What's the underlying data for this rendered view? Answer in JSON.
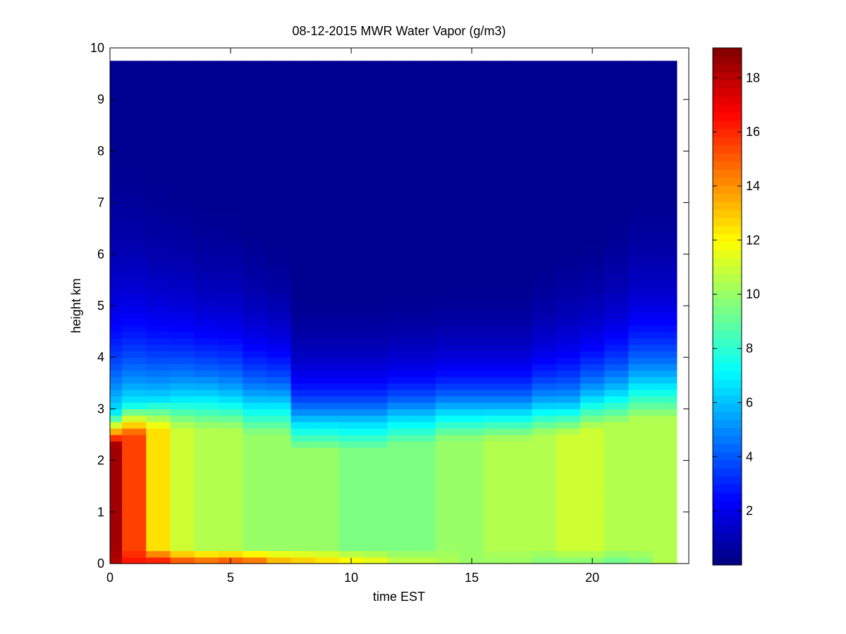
{
  "chart_data": {
    "type": "heatmap",
    "title": "08-12-2015 MWR Water Vapor (g/m3)",
    "xlabel": "time EST",
    "ylabel": "height km",
    "xlim": [
      0,
      24
    ],
    "ylim": [
      0,
      10
    ],
    "xticks": [
      0,
      5,
      10,
      15,
      20
    ],
    "yticks": [
      0,
      1,
      2,
      3,
      4,
      5,
      6,
      7,
      8,
      9,
      10
    ],
    "colorbar": {
      "min": 0,
      "max": 19.1,
      "ticks": [
        2,
        4,
        6,
        8,
        10,
        12,
        14,
        16,
        18
      ],
      "colormap": "jet"
    },
    "time_hours": [
      0,
      1,
      2,
      3,
      4,
      5,
      6,
      7,
      8,
      9,
      10,
      11,
      12,
      13,
      14,
      15,
      16,
      17,
      18,
      19,
      20,
      21,
      22,
      23
    ],
    "max_height_km": 9.75,
    "profile_columns": [
      "time_hours",
      "surface_vapor",
      "low_level_vapor",
      "moist_layer_top_km",
      "mid_level_vapor",
      "moisture_scale_height_km"
    ],
    "profiles": [
      [
        0,
        18.0,
        18.5,
        2.3,
        7.0,
        1.6
      ],
      [
        1,
        16.5,
        15.5,
        2.5,
        7.0,
        1.5
      ],
      [
        2,
        17.0,
        12.5,
        2.6,
        6.5,
        1.4
      ],
      [
        3,
        16.0,
        11.0,
        2.6,
        6.8,
        1.3
      ],
      [
        4,
        15.5,
        10.5,
        2.6,
        6.8,
        1.2
      ],
      [
        5,
        16.0,
        10.5,
        2.6,
        6.5,
        1.2
      ],
      [
        6,
        15.5,
        10.0,
        2.5,
        6.5,
        1.1
      ],
      [
        7,
        14.0,
        10.0,
        2.5,
        6.5,
        1.0
      ],
      [
        8,
        13.5,
        10.0,
        2.2,
        6.0,
        0.8
      ],
      [
        9,
        13.0,
        10.0,
        2.2,
        6.0,
        0.8
      ],
      [
        10,
        12.5,
        9.5,
        2.2,
        6.0,
        0.8
      ],
      [
        11,
        12.0,
        9.5,
        2.2,
        6.0,
        0.8
      ],
      [
        12,
        11.0,
        9.5,
        2.3,
        6.0,
        0.8
      ],
      [
        13,
        11.0,
        9.5,
        2.3,
        6.0,
        0.8
      ],
      [
        14,
        10.5,
        10.0,
        2.4,
        6.0,
        0.8
      ],
      [
        15,
        10.0,
        10.0,
        2.4,
        6.0,
        0.8
      ],
      [
        16,
        10.0,
        10.5,
        2.4,
        6.0,
        0.8
      ],
      [
        17,
        10.0,
        10.5,
        2.4,
        6.0,
        0.8
      ],
      [
        18,
        9.5,
        10.5,
        2.5,
        6.0,
        0.9
      ],
      [
        19,
        9.5,
        11.0,
        2.5,
        6.0,
        1.0
      ],
      [
        20,
        9.5,
        11.0,
        2.6,
        6.5,
        1.0
      ],
      [
        21,
        9.0,
        10.5,
        2.7,
        6.5,
        1.1
      ],
      [
        22,
        9.5,
        10.5,
        2.8,
        7.0,
        1.2
      ],
      [
        23,
        10.5,
        10.5,
        2.8,
        7.0,
        1.2
      ]
    ]
  }
}
